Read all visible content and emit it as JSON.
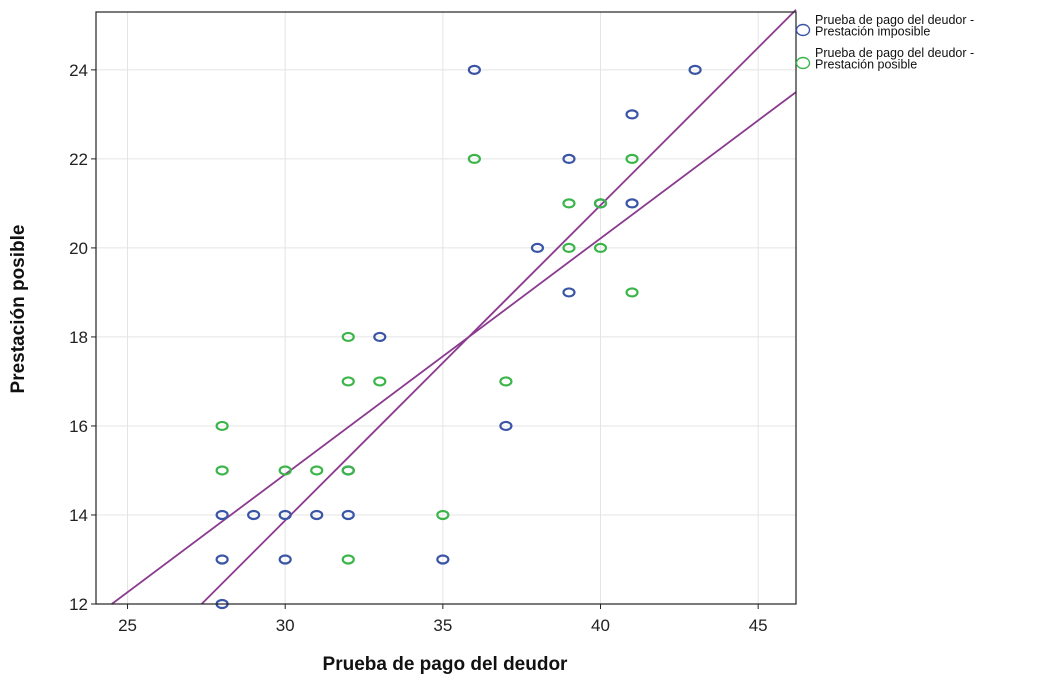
{
  "chart_data": {
    "type": "scatter",
    "title": "",
    "xlabel": "Prueba de pago del deudor",
    "ylabel": "Prestación posible",
    "xlim": [
      24,
      46.2
    ],
    "ylim": [
      12,
      25.3
    ],
    "xticks": [
      25,
      30,
      35,
      40,
      45
    ],
    "yticks": [
      12,
      14,
      16,
      18,
      20,
      22,
      24
    ],
    "grid": true,
    "legend_position": "top-right, outside plot",
    "series": [
      {
        "name_lines": [
          "Prueba de pago del deudor -",
          "Prestación imposible"
        ],
        "color": "#3b55a6",
        "points": [
          [
            36,
            24
          ],
          [
            43,
            24
          ],
          [
            41,
            23
          ],
          [
            39,
            22
          ],
          [
            40,
            21
          ],
          [
            41,
            21
          ],
          [
            38,
            20
          ],
          [
            39,
            19
          ],
          [
            33,
            18
          ],
          [
            37,
            16
          ],
          [
            32,
            15
          ],
          [
            28,
            14
          ],
          [
            29,
            14
          ],
          [
            30,
            14
          ],
          [
            31,
            14
          ],
          [
            32,
            14
          ],
          [
            28,
            13
          ],
          [
            30,
            13
          ],
          [
            35,
            13
          ],
          [
            28,
            12
          ]
        ]
      },
      {
        "name_lines": [
          "Prueba de pago del deudor -",
          "Prestación posible"
        ],
        "color": "#3bb54a",
        "points": [
          [
            36,
            22
          ],
          [
            41,
            22
          ],
          [
            39,
            21
          ],
          [
            40,
            21
          ],
          [
            39,
            20
          ],
          [
            40,
            20
          ],
          [
            41,
            19
          ],
          [
            32,
            18
          ],
          [
            32,
            17
          ],
          [
            33,
            17
          ],
          [
            37,
            17
          ],
          [
            28,
            16
          ],
          [
            28,
            15
          ],
          [
            30,
            15
          ],
          [
            31,
            15
          ],
          [
            32,
            15
          ],
          [
            35,
            14
          ],
          [
            32,
            13
          ]
        ]
      }
    ],
    "fit_lines": [
      {
        "color": "#8b3a8f",
        "from": [
          27.35,
          12
        ],
        "to": [
          46.2,
          25.35
        ]
      },
      {
        "color": "#8b3a8f",
        "from": [
          24.5,
          12
        ],
        "to": [
          46.2,
          23.5
        ]
      }
    ]
  }
}
